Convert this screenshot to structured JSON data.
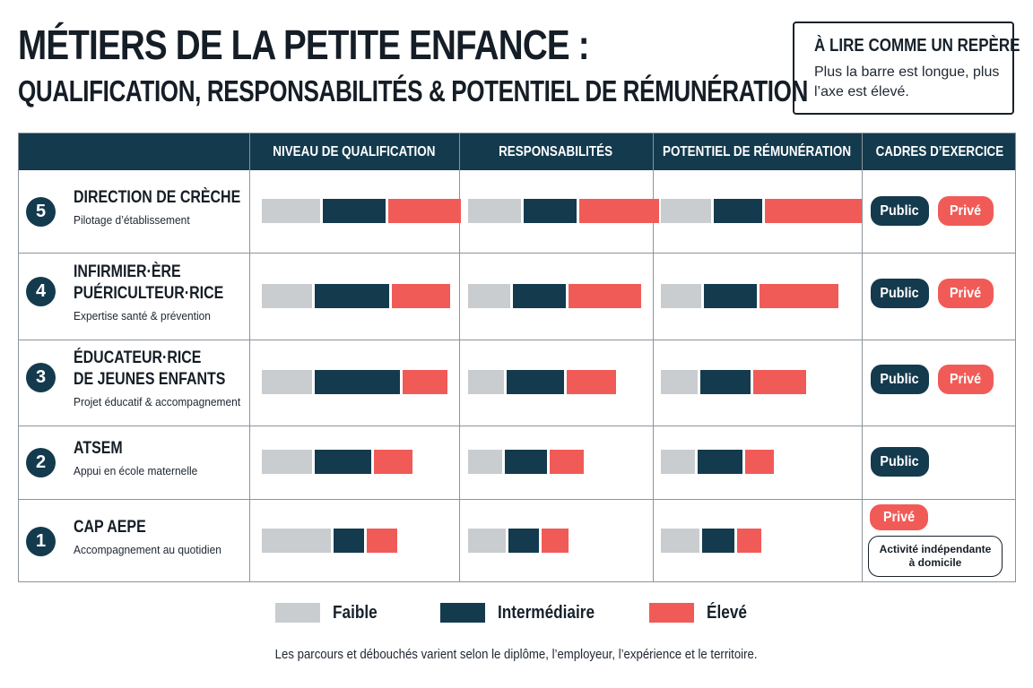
{
  "header": {
    "title": "MÉTIERS DE LA PETITE ENFANCE :",
    "subtitle": "QUALIFICATION, RESPONSABILITÉS & POTENTIEL DE RÉMUNÉRATION"
  },
  "hint": {
    "title": "À LIRE COMME UN REPÈRE",
    "text": "Plus la barre est longue, plus l’axe est élevé."
  },
  "colors": {
    "navy": "#143a4e",
    "gray": "#c9cdd0",
    "coral": "#f15b57"
  },
  "chart_data": {
    "type": "table",
    "columns": [
      "NIVEAU DE QUALIFICATION",
      "RESPONSABILITÉS",
      "POTENTIEL DE RÉMUNÉRATION",
      "CADRES D’EXERCICE"
    ],
    "levels": [
      "Faible",
      "Intermédiaire",
      "Élevé"
    ],
    "rows": [
      {
        "rank": "5",
        "name": "DIRECTION DE CRÈCHE",
        "desc": "Pilotage d’établissement",
        "qualification": [
          0.29,
          0.31,
          0.36
        ],
        "responsabilites": [
          0.28,
          0.28,
          0.42
        ],
        "remuneration": [
          0.25,
          0.24,
          0.48
        ],
        "cadres": [
          "Public",
          "Privé"
        ]
      },
      {
        "rank": "4",
        "name": "INFIRMIER·ÈRE\nPUÉRICULTEUR·RICE",
        "desc": "Expertise santé & prévention",
        "qualification": [
          0.25,
          0.37,
          0.29
        ],
        "responsabilites": [
          0.22,
          0.28,
          0.38
        ],
        "remuneration": [
          0.2,
          0.26,
          0.39
        ],
        "cadres": [
          "Public",
          "Privé"
        ]
      },
      {
        "rank": "3",
        "name": "ÉDUCATEUR·RICE\nDE JEUNES ENFANTS",
        "desc": "Projet éducatif & accompagnement",
        "qualification": [
          0.25,
          0.42,
          0.22
        ],
        "responsabilites": [
          0.19,
          0.3,
          0.26
        ],
        "remuneration": [
          0.18,
          0.25,
          0.26
        ],
        "cadres": [
          "Public",
          "Privé"
        ]
      },
      {
        "rank": "2",
        "name": "ATSEM",
        "desc": "Appui en école maternelle",
        "qualification": [
          0.25,
          0.28,
          0.19
        ],
        "responsabilites": [
          0.18,
          0.22,
          0.18
        ],
        "remuneration": [
          0.17,
          0.22,
          0.14
        ],
        "cadres": [
          "Public"
        ]
      },
      {
        "rank": "1",
        "name": "CAP AEPE",
        "desc": "Accompagnement au quotidien",
        "qualification": [
          0.34,
          0.15,
          0.15
        ],
        "responsabilites": [
          0.2,
          0.16,
          0.14
        ],
        "remuneration": [
          0.19,
          0.16,
          0.12
        ],
        "cadres": [
          "Privé",
          "Activité indépendante à domicile"
        ]
      }
    ]
  },
  "footer": "Les parcours et débouchés varient selon le diplôme, l’employeur, l’expérience et le territoire."
}
